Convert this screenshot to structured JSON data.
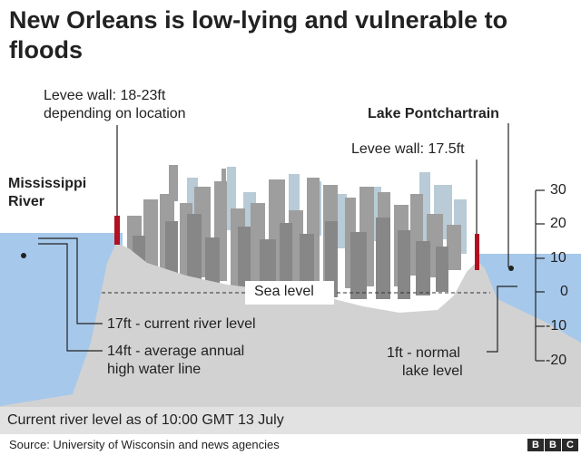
{
  "title": "New Orleans is low-lying and vulnerable to floods",
  "labels": {
    "levee_west": [
      "Levee wall: 18-23ft",
      "depending on location"
    ],
    "levee_east": "Levee wall: 17.5ft",
    "lake": "Lake Pontchartrain",
    "river": [
      "Mississippi",
      "River"
    ],
    "sea_level": "Sea level",
    "river_current": "17ft - current river level",
    "river_average": [
      "14ft - average annual",
      "high water line"
    ],
    "lake_normal": [
      "1ft - normal",
      "lake level"
    ]
  },
  "scale": {
    "unit": "ft",
    "ticks": [
      "30",
      "20",
      "10",
      "0",
      "-10",
      "-20"
    ]
  },
  "caption": "Current river level as of 10:00 GMT 13 July",
  "source": "Source: University of Wisconsin and news agencies",
  "logo": [
    "B",
    "B",
    "C"
  ],
  "colors": {
    "water": "#a6c8eb",
    "ground": "#d2d2d2",
    "levee": "#b0101f",
    "skyline_far": "#b8cbd6",
    "skyline_mid": "#9e9e9e",
    "skyline_near": "#878787",
    "text": "#222222",
    "caption_bg": "#e2e2e2"
  }
}
